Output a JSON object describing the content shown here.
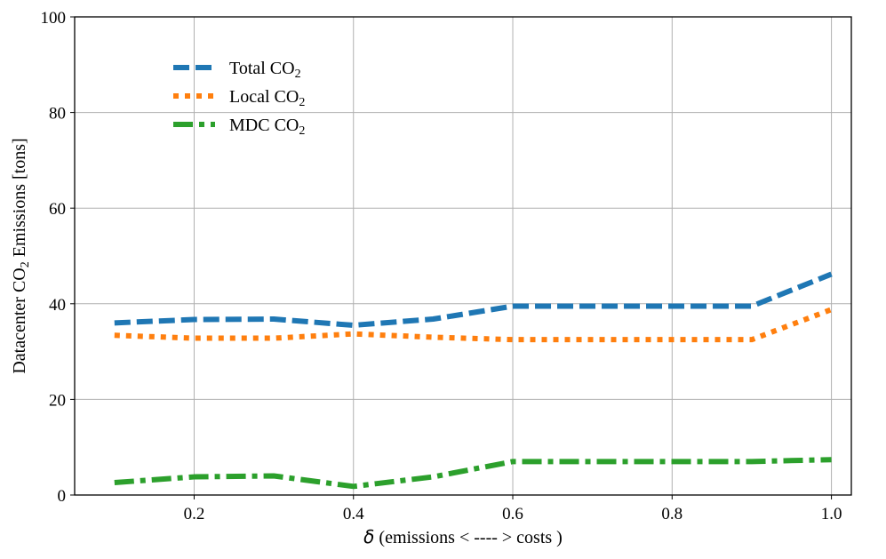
{
  "chart_data": {
    "type": "line",
    "title": "",
    "xlabel_symbol": "δ",
    "xlabel_text": " (emissions < ---- > costs )",
    "ylabel_main": "Datacenter CO",
    "ylabel_sub": "2",
    "ylabel_suffix": " Emissions [tons]",
    "xlim": [
      0.05,
      1.025
    ],
    "ylim": [
      0,
      100
    ],
    "x_ticks": [
      0.2,
      0.4,
      0.6,
      0.8,
      1.0
    ],
    "x_tick_labels": [
      "0.2",
      "0.4",
      "0.6",
      "0.8",
      "1.0"
    ],
    "y_ticks": [
      0,
      20,
      40,
      60,
      80,
      100
    ],
    "y_tick_labels": [
      "0",
      "20",
      "40",
      "60",
      "80",
      "100"
    ],
    "grid": true,
    "legend_position": "upper-left",
    "x": [
      0.1,
      0.2,
      0.3,
      0.4,
      0.5,
      0.6,
      0.7,
      0.8,
      0.9,
      1.0
    ],
    "series": [
      {
        "name": "Total CO",
        "name_sub": "2",
        "color": "#1f77b4",
        "style": "dashed",
        "values": [
          36.0,
          36.7,
          36.8,
          35.5,
          36.8,
          39.5,
          39.5,
          39.5,
          39.5,
          46.2
        ]
      },
      {
        "name": "Local CO",
        "name_sub": "2",
        "color": "#ff7f0e",
        "style": "dotted",
        "values": [
          33.4,
          32.8,
          32.8,
          33.7,
          33.0,
          32.5,
          32.5,
          32.5,
          32.5,
          38.8
        ]
      },
      {
        "name": "MDC CO",
        "name_sub": "2",
        "color": "#2ca02c",
        "style": "dashdot",
        "values": [
          2.6,
          3.8,
          4.0,
          1.8,
          3.8,
          7.0,
          7.0,
          7.0,
          7.0,
          7.4
        ]
      }
    ]
  }
}
